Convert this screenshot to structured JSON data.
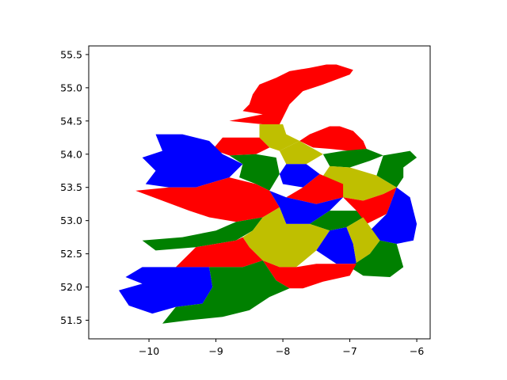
{
  "chart_data": {
    "type": "choropleth-map",
    "title": "",
    "xlabel": "",
    "ylabel": "",
    "xlim": [
      -10.9,
      -5.8
    ],
    "ylim": [
      51.22,
      55.63
    ],
    "x_ticks": [
      {
        "value": -10,
        "label": "−10"
      },
      {
        "value": -9,
        "label": "−9"
      },
      {
        "value": -8,
        "label": "−8"
      },
      {
        "value": -7,
        "label": "−7"
      },
      {
        "value": -6,
        "label": "−6"
      }
    ],
    "y_ticks": [
      {
        "value": 51.5,
        "label": "51.5"
      },
      {
        "value": 52.0,
        "label": "52.0"
      },
      {
        "value": 52.5,
        "label": "52.5"
      },
      {
        "value": 53.0,
        "label": "53.0"
      },
      {
        "value": 53.5,
        "label": "53.5"
      },
      {
        "value": 54.0,
        "label": "54.0"
      },
      {
        "value": 54.5,
        "label": "54.5"
      },
      {
        "value": 55.0,
        "label": "55.0"
      },
      {
        "value": 55.5,
        "label": "55.5"
      }
    ],
    "grid": false,
    "legend": false,
    "colors": {
      "red": "#ff0000",
      "blue": "#0000ff",
      "green": "#008000",
      "olive": "#bfbf00"
    },
    "regions": [
      {
        "color": "red",
        "lonlat": [
          [
            -8.0,
            54.55
          ],
          [
            -7.9,
            54.75
          ],
          [
            -7.7,
            54.95
          ],
          [
            -7.4,
            55.05
          ],
          [
            -7.0,
            55.2
          ],
          [
            -6.95,
            55.27
          ],
          [
            -7.2,
            55.35
          ],
          [
            -7.35,
            55.35
          ],
          [
            -7.6,
            55.3
          ],
          [
            -7.9,
            55.25
          ],
          [
            -8.1,
            55.15
          ],
          [
            -8.35,
            55.05
          ],
          [
            -8.45,
            54.9
          ],
          [
            -8.5,
            54.75
          ],
          [
            -8.6,
            54.65
          ],
          [
            -8.3,
            54.6
          ],
          [
            -8.8,
            54.5
          ],
          [
            -8.3,
            54.45
          ],
          [
            -8.05,
            54.45
          ]
        ]
      },
      {
        "color": "red",
        "lonlat": [
          [
            -7.75,
            54.2
          ],
          [
            -7.6,
            54.3
          ],
          [
            -7.3,
            54.42
          ],
          [
            -7.15,
            54.42
          ],
          [
            -6.95,
            54.35
          ],
          [
            -6.8,
            54.2
          ],
          [
            -6.75,
            54.08
          ],
          [
            -7.0,
            54.05
          ],
          [
            -7.3,
            54.08
          ],
          [
            -7.55,
            54.1
          ]
        ]
      },
      {
        "color": "olive",
        "lonlat": [
          [
            -8.35,
            54.45
          ],
          [
            -8.0,
            54.45
          ],
          [
            -7.95,
            54.3
          ],
          [
            -7.75,
            54.2
          ],
          [
            -8.05,
            54.05
          ],
          [
            -8.2,
            54.1
          ],
          [
            -8.35,
            54.25
          ]
        ]
      },
      {
        "color": "red",
        "lonlat": [
          [
            -8.9,
            54.25
          ],
          [
            -8.6,
            54.25
          ],
          [
            -8.35,
            54.25
          ],
          [
            -8.2,
            54.1
          ],
          [
            -8.4,
            54.0
          ],
          [
            -8.8,
            53.98
          ],
          [
            -9.05,
            54.07
          ]
        ]
      },
      {
        "color": "blue",
        "lonlat": [
          [
            -9.9,
            54.3
          ],
          [
            -9.5,
            54.3
          ],
          [
            -9.1,
            54.2
          ],
          [
            -8.9,
            54.0
          ],
          [
            -8.6,
            53.85
          ],
          [
            -8.8,
            53.65
          ],
          [
            -9.3,
            53.5
          ],
          [
            -9.7,
            53.5
          ],
          [
            -10.05,
            53.55
          ],
          [
            -9.9,
            53.75
          ],
          [
            -10.1,
            53.95
          ],
          [
            -9.8,
            54.05
          ]
        ]
      },
      {
        "color": "green",
        "lonlat": [
          [
            -8.8,
            53.98
          ],
          [
            -8.4,
            54.0
          ],
          [
            -8.1,
            53.95
          ],
          [
            -8.05,
            53.7
          ],
          [
            -8.2,
            53.45
          ],
          [
            -8.4,
            53.55
          ],
          [
            -8.65,
            53.65
          ],
          [
            -8.6,
            53.85
          ]
        ]
      },
      {
        "color": "olive",
        "lonlat": [
          [
            -8.05,
            54.05
          ],
          [
            -7.75,
            54.2
          ],
          [
            -7.4,
            54.0
          ],
          [
            -7.65,
            53.85
          ],
          [
            -7.95,
            53.85
          ]
        ]
      },
      {
        "color": "green",
        "lonlat": [
          [
            -7.4,
            54.0
          ],
          [
            -7.1,
            54.05
          ],
          [
            -6.75,
            54.08
          ],
          [
            -6.5,
            53.98
          ],
          [
            -6.7,
            53.9
          ],
          [
            -7.0,
            53.8
          ],
          [
            -7.3,
            53.82
          ]
        ]
      },
      {
        "color": "blue",
        "lonlat": [
          [
            -7.95,
            53.85
          ],
          [
            -7.65,
            53.85
          ],
          [
            -7.45,
            53.7
          ],
          [
            -7.7,
            53.5
          ],
          [
            -8.0,
            53.55
          ],
          [
            -8.05,
            53.7
          ]
        ]
      },
      {
        "color": "olive",
        "lonlat": [
          [
            -7.3,
            53.82
          ],
          [
            -7.0,
            53.8
          ],
          [
            -6.6,
            53.68
          ],
          [
            -6.3,
            53.5
          ],
          [
            -6.5,
            53.4
          ],
          [
            -6.8,
            53.3
          ],
          [
            -7.1,
            53.35
          ],
          [
            -7.45,
            53.6
          ]
        ]
      },
      {
        "color": "green",
        "lonlat": [
          [
            -6.5,
            53.98
          ],
          [
            -6.1,
            54.05
          ],
          [
            -6.0,
            53.95
          ],
          [
            -6.2,
            53.8
          ],
          [
            -6.2,
            53.65
          ],
          [
            -6.3,
            53.5
          ],
          [
            -6.6,
            53.68
          ]
        ]
      },
      {
        "color": "red",
        "lonlat": [
          [
            -7.7,
            53.5
          ],
          [
            -7.45,
            53.7
          ],
          [
            -7.1,
            53.55
          ],
          [
            -7.1,
            53.35
          ],
          [
            -7.5,
            53.25
          ],
          [
            -7.95,
            53.35
          ]
        ]
      },
      {
        "color": "red",
        "lonlat": [
          [
            -9.3,
            53.5
          ],
          [
            -8.8,
            53.65
          ],
          [
            -8.4,
            53.55
          ],
          [
            -8.2,
            53.45
          ],
          [
            -8.05,
            53.2
          ],
          [
            -8.3,
            53.05
          ],
          [
            -8.7,
            52.98
          ],
          [
            -9.1,
            53.05
          ],
          [
            -9.4,
            53.15
          ],
          [
            -9.8,
            53.3
          ],
          [
            -10.2,
            53.45
          ],
          [
            -9.7,
            53.5
          ]
        ]
      },
      {
        "color": "blue",
        "lonlat": [
          [
            -8.05,
            53.2
          ],
          [
            -8.2,
            53.45
          ],
          [
            -7.95,
            53.35
          ],
          [
            -7.5,
            53.25
          ],
          [
            -7.1,
            53.35
          ],
          [
            -7.3,
            53.15
          ],
          [
            -7.6,
            52.95
          ],
          [
            -7.95,
            52.95
          ]
        ]
      },
      {
        "color": "green",
        "lonlat": [
          [
            -7.6,
            52.95
          ],
          [
            -7.3,
            53.15
          ],
          [
            -6.9,
            53.15
          ],
          [
            -6.8,
            53.05
          ],
          [
            -7.05,
            52.9
          ],
          [
            -7.3,
            52.85
          ]
        ]
      },
      {
        "color": "red",
        "lonlat": [
          [
            -7.1,
            53.35
          ],
          [
            -6.8,
            53.3
          ],
          [
            -6.5,
            53.4
          ],
          [
            -6.3,
            53.5
          ],
          [
            -6.45,
            53.1
          ],
          [
            -6.75,
            52.95
          ],
          [
            -6.9,
            53.15
          ]
        ]
      },
      {
        "color": "blue",
        "lonlat": [
          [
            -6.45,
            53.1
          ],
          [
            -6.3,
            53.5
          ],
          [
            -6.1,
            53.35
          ],
          [
            -6.0,
            52.95
          ],
          [
            -6.05,
            52.7
          ],
          [
            -6.3,
            52.65
          ],
          [
            -6.55,
            52.7
          ],
          [
            -6.7,
            52.85
          ]
        ]
      },
      {
        "color": "green",
        "lonlat": [
          [
            -10.1,
            52.7
          ],
          [
            -9.5,
            52.75
          ],
          [
            -9.0,
            52.85
          ],
          [
            -8.7,
            52.98
          ],
          [
            -8.3,
            53.05
          ],
          [
            -8.45,
            52.85
          ],
          [
            -8.7,
            52.7
          ],
          [
            -9.3,
            52.6
          ],
          [
            -9.9,
            52.55
          ]
        ]
      },
      {
        "color": "olive",
        "lonlat": [
          [
            -8.3,
            53.05
          ],
          [
            -8.05,
            53.2
          ],
          [
            -7.95,
            52.95
          ],
          [
            -7.6,
            52.95
          ],
          [
            -7.3,
            52.85
          ],
          [
            -7.5,
            52.55
          ],
          [
            -7.8,
            52.3
          ],
          [
            -8.05,
            52.3
          ],
          [
            -8.3,
            52.4
          ],
          [
            -8.5,
            52.6
          ],
          [
            -8.6,
            52.75
          ],
          [
            -8.45,
            52.85
          ]
        ]
      },
      {
        "color": "blue",
        "lonlat": [
          [
            -7.3,
            52.85
          ],
          [
            -7.05,
            52.9
          ],
          [
            -6.95,
            52.65
          ],
          [
            -6.9,
            52.35
          ],
          [
            -7.2,
            52.35
          ],
          [
            -7.5,
            52.55
          ]
        ]
      },
      {
        "color": "olive",
        "lonlat": [
          [
            -7.05,
            52.9
          ],
          [
            -6.8,
            53.05
          ],
          [
            -6.55,
            52.7
          ],
          [
            -6.7,
            52.5
          ],
          [
            -7.0,
            52.3
          ],
          [
            -6.9,
            52.35
          ],
          [
            -6.95,
            52.65
          ]
        ]
      },
      {
        "color": "green",
        "lonlat": [
          [
            -6.55,
            52.7
          ],
          [
            -6.3,
            52.65
          ],
          [
            -6.2,
            52.3
          ],
          [
            -6.4,
            52.15
          ],
          [
            -6.8,
            52.17
          ],
          [
            -7.0,
            52.3
          ],
          [
            -6.7,
            52.5
          ]
        ]
      },
      {
        "color": "red",
        "lonlat": [
          [
            -9.3,
            52.6
          ],
          [
            -8.7,
            52.7
          ],
          [
            -8.6,
            52.75
          ],
          [
            -8.5,
            52.6
          ],
          [
            -8.3,
            52.4
          ],
          [
            -8.6,
            52.3
          ],
          [
            -9.1,
            52.3
          ],
          [
            -9.6,
            52.3
          ]
        ]
      },
      {
        "color": "red",
        "lonlat": [
          [
            -8.3,
            52.4
          ],
          [
            -8.05,
            52.3
          ],
          [
            -7.8,
            52.3
          ],
          [
            -7.5,
            52.35
          ],
          [
            -7.2,
            52.35
          ],
          [
            -6.9,
            52.35
          ],
          [
            -7.0,
            52.17
          ],
          [
            -7.4,
            52.08
          ],
          [
            -7.7,
            51.98
          ],
          [
            -7.9,
            51.98
          ],
          [
            -8.1,
            52.1
          ]
        ]
      },
      {
        "color": "blue",
        "lonlat": [
          [
            -9.6,
            52.3
          ],
          [
            -9.1,
            52.3
          ],
          [
            -9.05,
            52.0
          ],
          [
            -9.2,
            51.75
          ],
          [
            -9.6,
            51.7
          ],
          [
            -9.95,
            51.6
          ],
          [
            -10.3,
            51.72
          ],
          [
            -10.45,
            51.95
          ],
          [
            -10.1,
            52.05
          ],
          [
            -10.35,
            52.15
          ],
          [
            -10.1,
            52.3
          ]
        ]
      },
      {
        "color": "green",
        "lonlat": [
          [
            -9.1,
            52.3
          ],
          [
            -8.6,
            52.3
          ],
          [
            -8.3,
            52.4
          ],
          [
            -8.1,
            52.1
          ],
          [
            -7.9,
            51.98
          ],
          [
            -8.2,
            51.85
          ],
          [
            -8.5,
            51.65
          ],
          [
            -8.9,
            51.55
          ],
          [
            -9.4,
            51.5
          ],
          [
            -9.8,
            51.45
          ],
          [
            -9.6,
            51.7
          ],
          [
            -9.2,
            51.75
          ],
          [
            -9.05,
            52.0
          ]
        ]
      }
    ]
  }
}
